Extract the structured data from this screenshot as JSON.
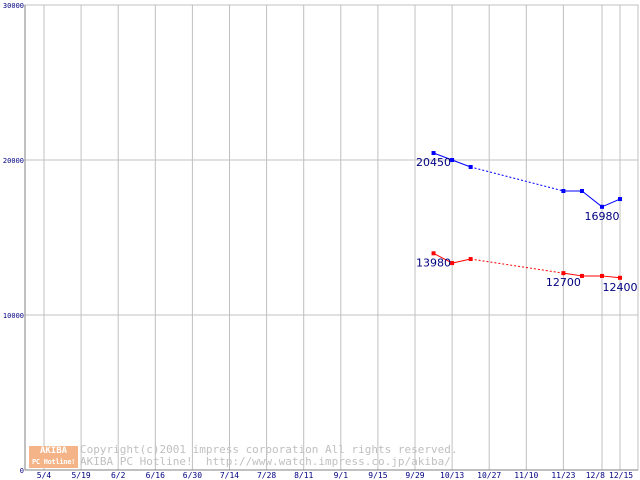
{
  "chart_data": {
    "type": "line",
    "title": "",
    "xlabel": "",
    "ylabel": "",
    "ylim": [
      0,
      30000
    ],
    "yticks": [
      "0",
      "10000",
      "20000",
      "30000"
    ],
    "xticks": [
      "5/4",
      "5/19",
      "6/2",
      "6/16",
      "6/30",
      "7/14",
      "7/28",
      "8/11",
      "9/1",
      "9/15",
      "9/29",
      "10/13",
      "10/27",
      "11/10",
      "11/23",
      "12/8",
      "12/15"
    ],
    "grid": true,
    "x_positions_index": [
      10.5,
      11,
      11.5,
      14,
      14.5,
      15,
      15.5
    ],
    "series": [
      {
        "name": "blue",
        "color": "#0000ff",
        "values": [
          20450,
          20000,
          19550,
          18000,
          18000,
          16980,
          17480
        ],
        "dotted_after_index": 2
      },
      {
        "name": "red",
        "color": "#ff0000",
        "values": [
          13980,
          13350,
          13610,
          12700,
          12520,
          12520,
          12400
        ],
        "dotted_after_index": 2
      }
    ],
    "annotations": [
      {
        "text": "20450",
        "series": 0,
        "point": 0
      },
      {
        "text": "16980",
        "series": 0,
        "point": 5
      },
      {
        "text": "13980",
        "series": 1,
        "point": 0
      },
      {
        "text": "12700",
        "series": 1,
        "point": 3
      },
      {
        "text": "12400",
        "series": 1,
        "point": 6
      }
    ]
  },
  "watermark": {
    "logo_top": "AKIBA",
    "logo_bottom": "PC Hotline!",
    "line1": "Copyright(c)2001 impress corporation All rights reserved.",
    "line2": "AKIBA PC Hotline!  http://www.watch.impress.co.jp/akiba/"
  }
}
